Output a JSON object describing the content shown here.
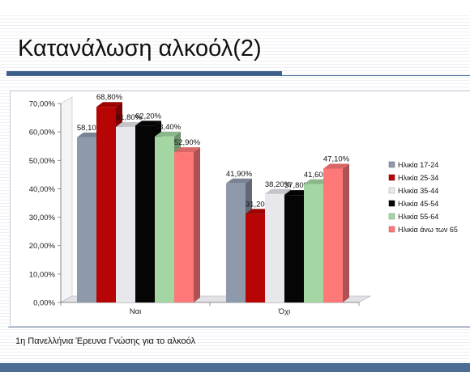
{
  "slide": {
    "title": "Κατανάλωση αλκοόλ(2)",
    "source": "1η Πανελλήνια Έρευνα Γνώσης για το αλκοόλ"
  },
  "chart_data": {
    "type": "bar",
    "style": "3d-clustered",
    "categories": [
      "Ναι",
      "Όχι"
    ],
    "series": [
      {
        "name": "Ηλικία 17-24",
        "color": "#8e9aac",
        "values": [
          58.1,
          41.9
        ],
        "labels": [
          "58,10%",
          "41,90%"
        ]
      },
      {
        "name": "Ηλικία 25-34",
        "color": "#b70404",
        "values": [
          68.8,
          31.2
        ],
        "labels": [
          "68,80%",
          "31,20%"
        ]
      },
      {
        "name": "Ηλικία 35-44",
        "color": "#e8e8ec",
        "values": [
          61.8,
          38.2
        ],
        "labels": [
          "61,80%",
          "38,20%"
        ]
      },
      {
        "name": "Ηλικία 45-54",
        "color": "#050505",
        "values": [
          62.2,
          37.8
        ],
        "labels": [
          "62,20%",
          "37,80%"
        ]
      },
      {
        "name": "Ηλικία 55-64",
        "color": "#a3d6a3",
        "values": [
          58.4,
          41.6
        ],
        "labels": [
          "58,40%",
          "41,60%"
        ]
      },
      {
        "name": "Ηλικία άνω των 65",
        "color": "#ff7878",
        "values": [
          52.9,
          47.1
        ],
        "labels": [
          "52,90%",
          "47,10%"
        ]
      }
    ],
    "ylim": [
      0,
      70
    ],
    "yticks": [
      "0,00%",
      "10,00%",
      "20,00%",
      "30,00%",
      "40,00%",
      "50,00%",
      "60,00%",
      "70,00%"
    ],
    "ytick_values": [
      0,
      10,
      20,
      30,
      40,
      50,
      60,
      70
    ],
    "grid": false,
    "legend_position": "right"
  }
}
